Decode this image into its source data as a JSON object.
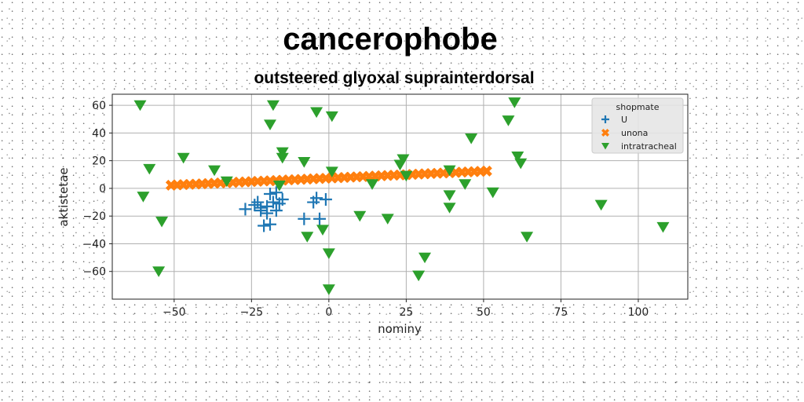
{
  "chart_data": {
    "type": "scatter",
    "title": "cancerophobe",
    "subtitle": "outsteered glyoxal suprainterdorsal",
    "xlabel": "nominy",
    "ylabel": "aktistetae",
    "xlim": [
      -70,
      116
    ],
    "ylim": [
      -80,
      68
    ],
    "xticks": [
      -50,
      -25,
      0,
      25,
      50,
      75,
      100
    ],
    "yticks": [
      -60,
      -40,
      -20,
      0,
      20,
      40,
      60
    ],
    "xtick_labels": [
      "−50",
      "−25",
      "0",
      "25",
      "50",
      "75",
      "100"
    ],
    "ytick_labels": [
      "−60",
      "−40",
      "−20",
      "0",
      "20",
      "40",
      "60"
    ],
    "grid": true,
    "legend": {
      "title": "shopmate",
      "position": "top-right"
    },
    "series": [
      {
        "name": "U",
        "marker": "plus",
        "color": "#1f77b4",
        "points": [
          [
            -27,
            -15
          ],
          [
            -24,
            -12
          ],
          [
            -22,
            -14
          ],
          [
            -22,
            -16
          ],
          [
            -21,
            -27
          ],
          [
            -20,
            -18
          ],
          [
            -19,
            -4
          ],
          [
            -19,
            -26
          ],
          [
            -18,
            -10
          ],
          [
            -17,
            -3
          ],
          [
            -17,
            -16
          ],
          [
            -16,
            -11
          ],
          [
            -15,
            -8
          ],
          [
            -8,
            -22
          ],
          [
            -5,
            -10
          ],
          [
            -4,
            -7
          ],
          [
            -3,
            -22
          ],
          [
            -1,
            -8
          ],
          [
            -23,
            -10
          ],
          [
            -20,
            -13
          ]
        ]
      },
      {
        "name": "unona",
        "marker": "x",
        "color": "#ff7f0e",
        "points": [
          [
            -51,
            2.3
          ],
          [
            -49,
            2.5
          ],
          [
            -47,
            2.7
          ],
          [
            -45,
            2.9
          ],
          [
            -43,
            3.1
          ],
          [
            -41,
            3.3
          ],
          [
            -39,
            3.5
          ],
          [
            -37,
            3.7
          ],
          [
            -35,
            3.9
          ],
          [
            -33,
            4.1
          ],
          [
            -31,
            4.3
          ],
          [
            -29,
            4.5
          ],
          [
            -27,
            4.7
          ],
          [
            -25,
            4.9
          ],
          [
            -23,
            5.1
          ],
          [
            -21,
            5.3
          ],
          [
            -19,
            5.5
          ],
          [
            -17,
            5.7
          ],
          [
            -15,
            5.9
          ],
          [
            -13,
            6.1
          ],
          [
            -11,
            6.3
          ],
          [
            -9,
            6.5
          ],
          [
            -7,
            6.7
          ],
          [
            -5,
            6.9
          ],
          [
            -3,
            7.1
          ],
          [
            -1,
            7.3
          ],
          [
            1,
            7.5
          ],
          [
            3,
            7.7
          ],
          [
            5,
            7.9
          ],
          [
            7,
            8.1
          ],
          [
            9,
            8.3
          ],
          [
            11,
            8.5
          ],
          [
            13,
            8.7
          ],
          [
            15,
            8.9
          ],
          [
            17,
            9.1
          ],
          [
            19,
            9.3
          ],
          [
            21,
            9.5
          ],
          [
            23,
            9.7
          ],
          [
            25,
            9.9
          ],
          [
            27,
            10.1
          ],
          [
            29,
            10.3
          ],
          [
            31,
            10.5
          ],
          [
            33,
            10.7
          ],
          [
            35,
            10.9
          ],
          [
            37,
            11.1
          ],
          [
            39,
            11.3
          ],
          [
            41,
            11.5
          ],
          [
            43,
            11.7
          ],
          [
            45,
            11.9
          ],
          [
            47,
            12.1
          ],
          [
            49,
            12.3
          ],
          [
            51,
            12.5
          ]
        ]
      },
      {
        "name": "intratracheal",
        "marker": "triangle-down",
        "color": "#2ca02c",
        "points": [
          [
            -61,
            60
          ],
          [
            -58,
            14
          ],
          [
            -60,
            -6
          ],
          [
            -54,
            -24
          ],
          [
            -55,
            -60
          ],
          [
            -47,
            22
          ],
          [
            -37,
            13
          ],
          [
            -33,
            5
          ],
          [
            -18,
            60
          ],
          [
            -19,
            46
          ],
          [
            -15,
            26
          ],
          [
            -15,
            22
          ],
          [
            -16,
            2
          ],
          [
            -8,
            19
          ],
          [
            -4,
            55
          ],
          [
            1,
            52
          ],
          [
            1,
            12
          ],
          [
            -7,
            -35
          ],
          [
            -2,
            -30
          ],
          [
            0,
            -47
          ],
          [
            0,
            -73
          ],
          [
            10,
            -20
          ],
          [
            14,
            3
          ],
          [
            19,
            -22
          ],
          [
            24,
            21
          ],
          [
            23,
            17
          ],
          [
            25,
            9
          ],
          [
            29,
            -63
          ],
          [
            31,
            -50
          ],
          [
            39,
            13
          ],
          [
            39,
            -5
          ],
          [
            39,
            -14
          ],
          [
            44,
            3
          ],
          [
            46,
            36
          ],
          [
            53,
            -3
          ],
          [
            58,
            49
          ],
          [
            60,
            62
          ],
          [
            61,
            23
          ],
          [
            62,
            18
          ],
          [
            64,
            -35
          ],
          [
            88,
            -12
          ],
          [
            108,
            -28
          ]
        ]
      }
    ]
  }
}
